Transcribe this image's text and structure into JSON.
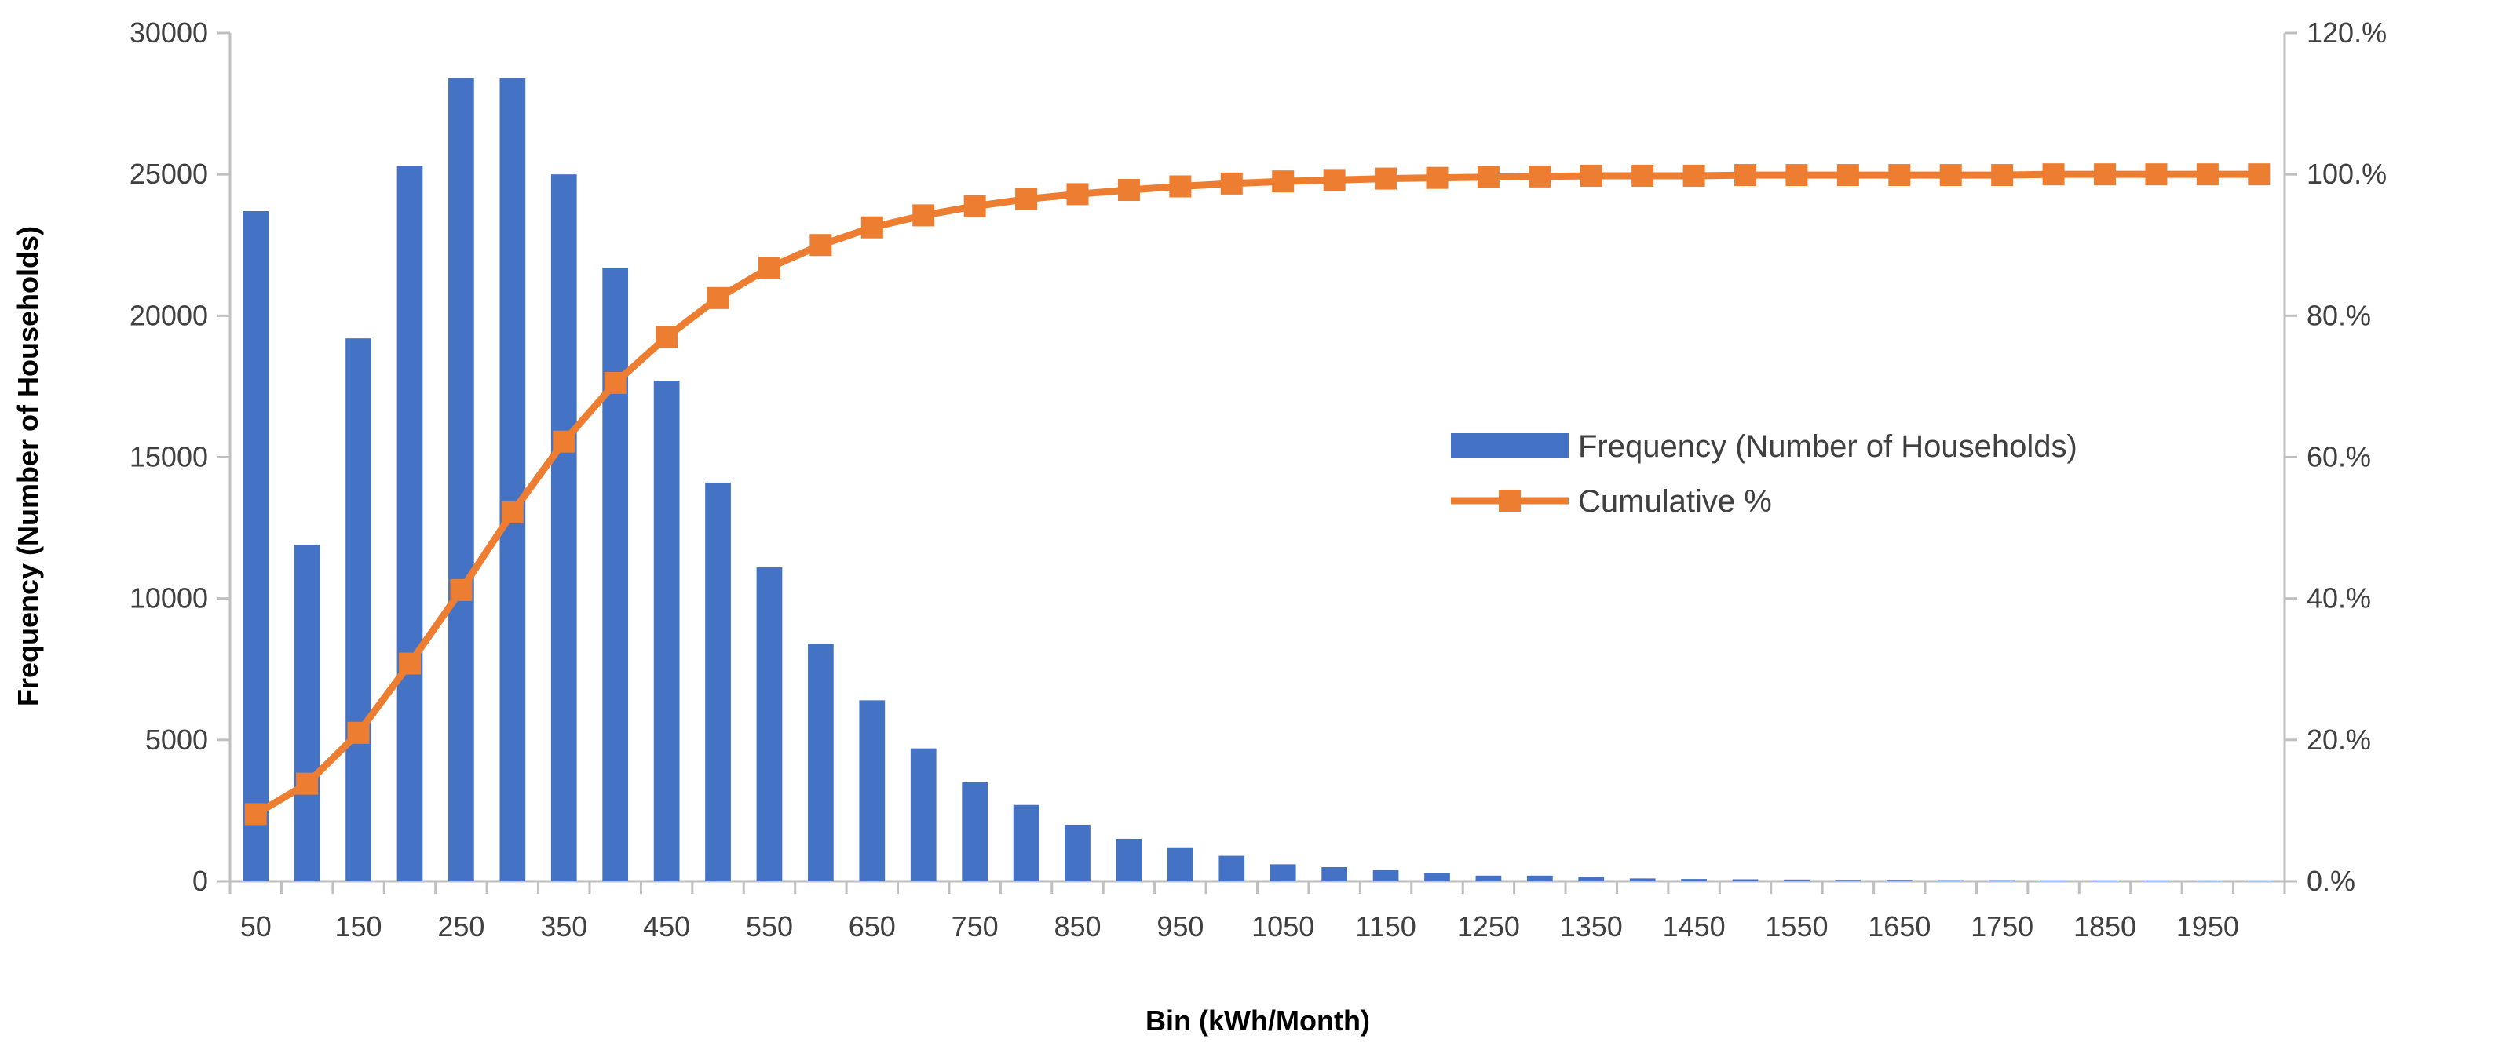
{
  "chart_data": {
    "type": "bar+line",
    "title": "",
    "xlabel": "Bin (kWh/Month)",
    "ylabel": "Frequency (Number of Households)",
    "ylim": [
      0,
      30000
    ],
    "y2lim": [
      0,
      120
    ],
    "y_ticks": [
      "0",
      "5000",
      "10000",
      "15000",
      "20000",
      "25000",
      "30000"
    ],
    "y2_ticks": [
      "0.%",
      "20.%",
      "40.%",
      "60.%",
      "80.%",
      "100.%",
      "120.%"
    ],
    "categories": [
      50,
      100,
      150,
      200,
      250,
      300,
      350,
      400,
      450,
      500,
      550,
      600,
      650,
      700,
      750,
      800,
      850,
      900,
      950,
      1000,
      1050,
      1100,
      1150,
      1200,
      1250,
      1300,
      1350,
      1400,
      1450,
      1500,
      1550,
      1600,
      1650,
      1700,
      1750,
      1800,
      1850,
      1900,
      1950,
      2000
    ],
    "x_tick_labels": [
      "50",
      "150",
      "250",
      "350",
      "450",
      "550",
      "650",
      "750",
      "850",
      "950",
      "1050",
      "1150",
      "1250",
      "1350",
      "1450",
      "1550",
      "1650",
      "1750",
      "1850",
      "1950"
    ],
    "series": [
      {
        "name": "Frequency (Number of Households)",
        "kind": "bar",
        "axis": "left",
        "color": "#4472C4",
        "values": [
          23700,
          11900,
          19200,
          25300,
          28400,
          28400,
          25000,
          21700,
          17700,
          14100,
          11100,
          8400,
          6400,
          4700,
          3500,
          2700,
          2000,
          1500,
          1200,
          900,
          600,
          500,
          400,
          300,
          200,
          200,
          150,
          100,
          80,
          70,
          60,
          50,
          50,
          40,
          40,
          30,
          30,
          30,
          20,
          20
        ]
      },
      {
        "name": "Cumulative %",
        "kind": "line",
        "axis": "right",
        "color": "#ED7D31",
        "marker": "square",
        "values": [
          9.5,
          13.8,
          21.0,
          30.8,
          41.2,
          52.2,
          62.2,
          70.5,
          77.0,
          82.5,
          86.8,
          90.0,
          92.5,
          94.2,
          95.5,
          96.5,
          97.2,
          97.8,
          98.3,
          98.7,
          99.0,
          99.2,
          99.4,
          99.5,
          99.6,
          99.7,
          99.8,
          99.8,
          99.8,
          99.9,
          99.9,
          99.9,
          99.9,
          99.9,
          99.9,
          100.0,
          100.0,
          100.0,
          100.0,
          100.0
        ]
      }
    ],
    "legend_position": "center-right",
    "grid": false
  }
}
